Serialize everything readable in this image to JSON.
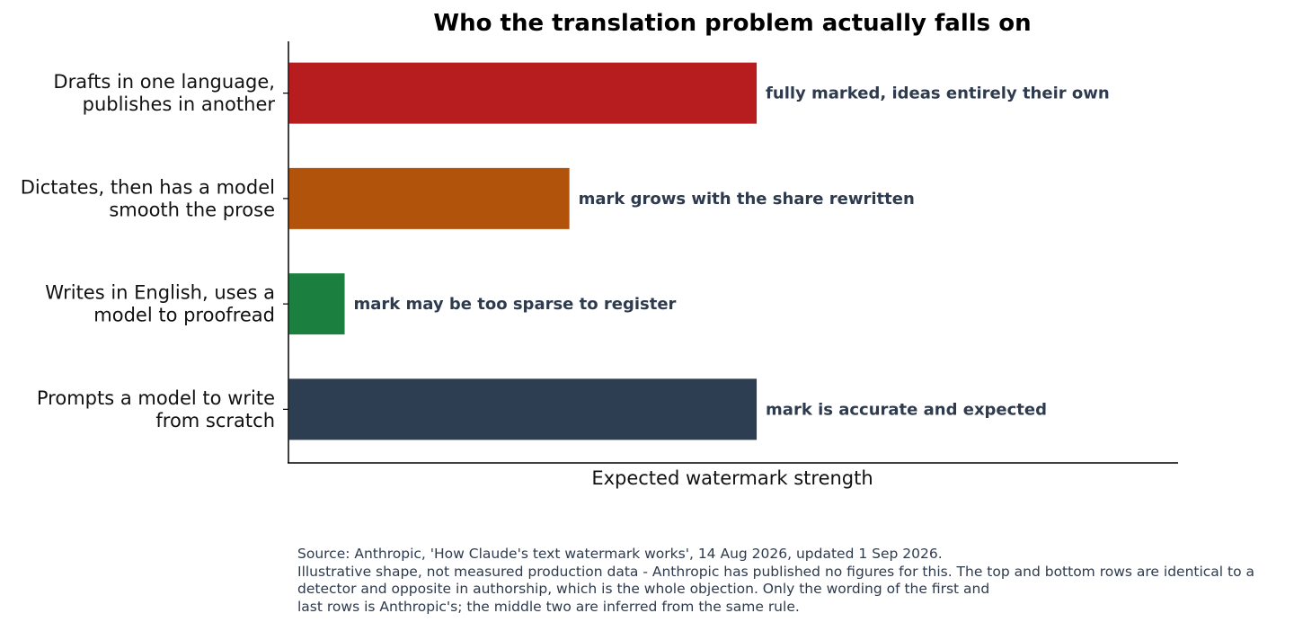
{
  "chart_data": {
    "type": "bar",
    "orientation": "horizontal",
    "title": "Who the translation problem actually falls on",
    "xlabel": "Expected watermark strength",
    "ylabel": "",
    "categories": [
      [
        "Drafts in one language,",
        "publishes in another"
      ],
      [
        "Dictates, then has a model",
        "smooth the prose"
      ],
      [
        "Writes in English, uses a",
        "model to proofread"
      ],
      [
        "Prompts a model to write",
        "from scratch"
      ]
    ],
    "values": [
      1.0,
      0.6,
      0.12,
      1.0
    ],
    "xlim": [
      0,
      1.9
    ],
    "bar_labels": [
      "fully marked, ideas entirely their own",
      "mark grows with the share rewritten",
      "mark may be too sparse to register",
      "mark is accurate and expected"
    ],
    "colors": [
      "#b71c1f",
      "#b2530c",
      "#1a7f3f",
      "#2e3e52"
    ],
    "grid": false,
    "x_ticks": false
  },
  "source_lines": [
    "Source: Anthropic, 'How Claude's text watermark works', 14 Aug 2026, updated 1 Sep 2026.",
    "Illustrative shape, not measured production data - Anthropic has published no figures for this. The top and bottom rows are identical to a",
    "detector and opposite in authorship, which is the whole objection. Only the wording of the first and",
    "last rows is Anthropic's; the middle two are inferred from the same rule."
  ]
}
